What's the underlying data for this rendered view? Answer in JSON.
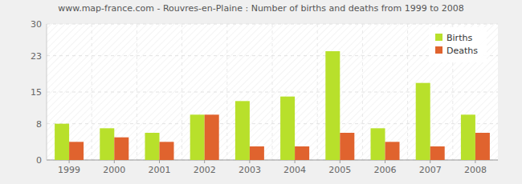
{
  "chart_data": {
    "type": "bar",
    "title": "www.map-france.com - Rouvres-en-Plaine : Number of births and deaths from 1999 to 2008",
    "categories": [
      "1999",
      "2000",
      "2001",
      "2002",
      "2003",
      "2004",
      "2005",
      "2006",
      "2007",
      "2008"
    ],
    "series": [
      {
        "name": "Births",
        "color": "#b8e02b",
        "values": [
          8,
          7,
          6,
          10,
          13,
          14,
          24,
          7,
          17,
          10
        ]
      },
      {
        "name": "Deaths",
        "color": "#e0632e",
        "values": [
          4,
          5,
          4,
          10,
          3,
          3,
          6,
          4,
          3,
          6
        ]
      }
    ],
    "ylim": [
      0,
      30
    ],
    "yticks": [
      0,
      8,
      15,
      23,
      30
    ],
    "grid": true,
    "legend": "top-right"
  }
}
